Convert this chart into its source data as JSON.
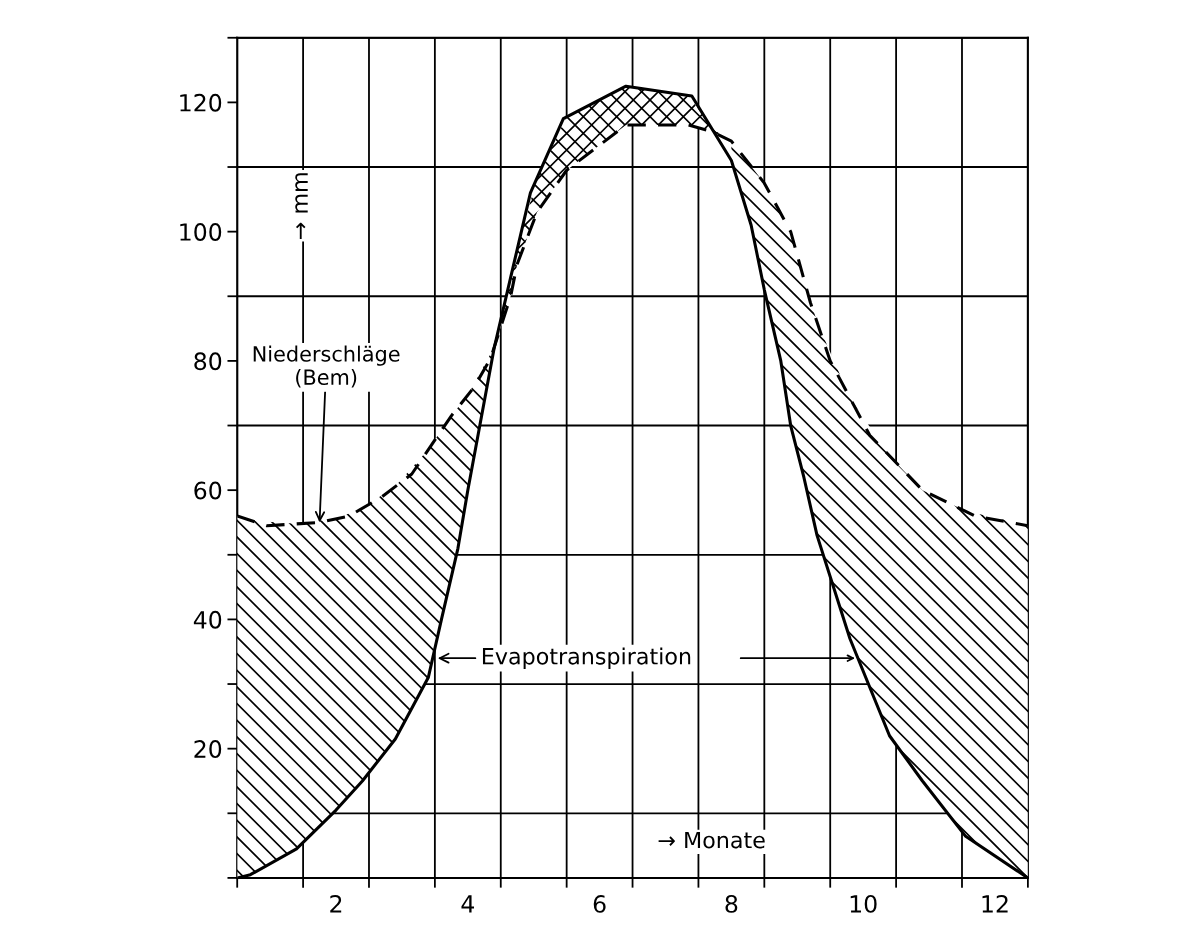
{
  "chart_data": {
    "type": "line",
    "xlabel": "→ Monate",
    "ylabel": "→ mm",
    "xlim": [
      0.5,
      12.5
    ],
    "ylim": [
      0,
      130
    ],
    "xticks": [
      {
        "value": 0.5,
        "label": null
      },
      {
        "value": 1.5,
        "label": null
      },
      {
        "value": 2,
        "label": "2"
      },
      {
        "value": 2.5,
        "label": null
      },
      {
        "value": 3.5,
        "label": null
      },
      {
        "value": 4,
        "label": "4"
      },
      {
        "value": 4.5,
        "label": null
      },
      {
        "value": 5.5,
        "label": null
      },
      {
        "value": 6,
        "label": "6"
      },
      {
        "value": 6.5,
        "label": null
      },
      {
        "value": 7.5,
        "label": null
      },
      {
        "value": 8,
        "label": "8"
      },
      {
        "value": 8.5,
        "label": null
      },
      {
        "value": 9.5,
        "label": null
      },
      {
        "value": 10,
        "label": "10"
      },
      {
        "value": 10.5,
        "label": null
      },
      {
        "value": 11.5,
        "label": null
      },
      {
        "value": 12,
        "label": "12"
      },
      {
        "value": 12.5,
        "label": null
      }
    ],
    "yticks": [
      {
        "value": 0,
        "label": null
      },
      {
        "value": 10,
        "label": null
      },
      20,
      {
        "value": 30,
        "label": null
      },
      40,
      {
        "value": 50,
        "label": null
      },
      60,
      {
        "value": 70,
        "label": null
      },
      80,
      {
        "value": 90,
        "label": null
      },
      100,
      {
        "value": 110,
        "label": null
      },
      120,
      {
        "value": 130,
        "label": null
      }
    ],
    "grid": true,
    "marker": "none",
    "series": [
      {
        "color": "#000000",
        "line_style": "solid",
        "x": [
          0.5,
          0.7,
          1.4,
          2.0,
          2.4,
          2.9,
          3.4,
          3.6,
          3.85,
          4.0,
          4.4,
          4.95,
          5.45,
          6.4,
          7.4,
          8.0,
          8.3,
          8.5,
          8.75,
          8.9,
          9.1,
          9.3,
          9.8,
          10.4,
          10.9,
          11.55,
          12.5
        ],
        "values": [
          0,
          0.5,
          4.5,
          10.5,
          15,
          21.5,
          31,
          40,
          51,
          60,
          82,
          106,
          117.5,
          122.5,
          121,
          111,
          101,
          91,
          80,
          70,
          62,
          53,
          37,
          22,
          15,
          6.5,
          0
        ],
        "lower": [
          0,
          0.5,
          4.5,
          10.5,
          15,
          21.5,
          31,
          40,
          51,
          60,
          82,
          null,
          null,
          null,
          null,
          111,
          101,
          91,
          80,
          70,
          62,
          53,
          37,
          22,
          15,
          6.5,
          0
        ],
        "upper": [
          56,
          55.3,
          54.8,
          55.6,
          57.2,
          60.6,
          66.3,
          69.3,
          72.8,
          74.7,
          82.1,
          null,
          null,
          null,
          null,
          114,
          110.1,
          107.5,
          102.8,
          100.4,
          92.7,
          86,
          74.3,
          65.3,
          60,
          56.8,
          54.5
        ]
      },
      {
        "color": "#000000",
        "line_style": "dashed",
        "x": [
          0.5,
          0.95,
          1.75,
          2.2,
          2.7,
          3.15,
          3.45,
          3.75,
          4.1,
          4.35,
          4.65,
          4.75,
          5.05,
          5.5,
          6.4,
          7.35,
          7.7,
          8.0,
          8.5,
          8.9,
          9.2,
          9.5,
          10.1,
          10.9,
          11.7,
          12.5
        ],
        "values": [
          56,
          54.5,
          55,
          56,
          59,
          62.5,
          67,
          71.5,
          76,
          80.5,
          90,
          95,
          103,
          109.5,
          116.5,
          116.5,
          115.5,
          114,
          107.5,
          100,
          89,
          80,
          68.5,
          60,
          56,
          54.5
        ],
        "lower": [
          null,
          null,
          null,
          null,
          null,
          null,
          null,
          null,
          null,
          80.5,
          90,
          95,
          103,
          109.5,
          116.5,
          116.5,
          115.5,
          114,
          null,
          null,
          null,
          null,
          null,
          null,
          null,
          null
        ],
        "upper": [
          null,
          null,
          null,
          null,
          null,
          null,
          null,
          null,
          null,
          80.5,
          92.9,
          97.3,
          108.3,
          117.8,
          122.5,
          121.1,
          116,
          114,
          null,
          null,
          null,
          null,
          null,
          null,
          null,
          null
        ]
      }
    ],
    "annotations": [
      {
        "text": "Niederschläge\n(Bem)",
        "x": 1.75,
        "y": 55
      },
      {
        "text": "Evapotranspiration",
        "x": 3.5,
        "y": 34
      }
    ]
  }
}
